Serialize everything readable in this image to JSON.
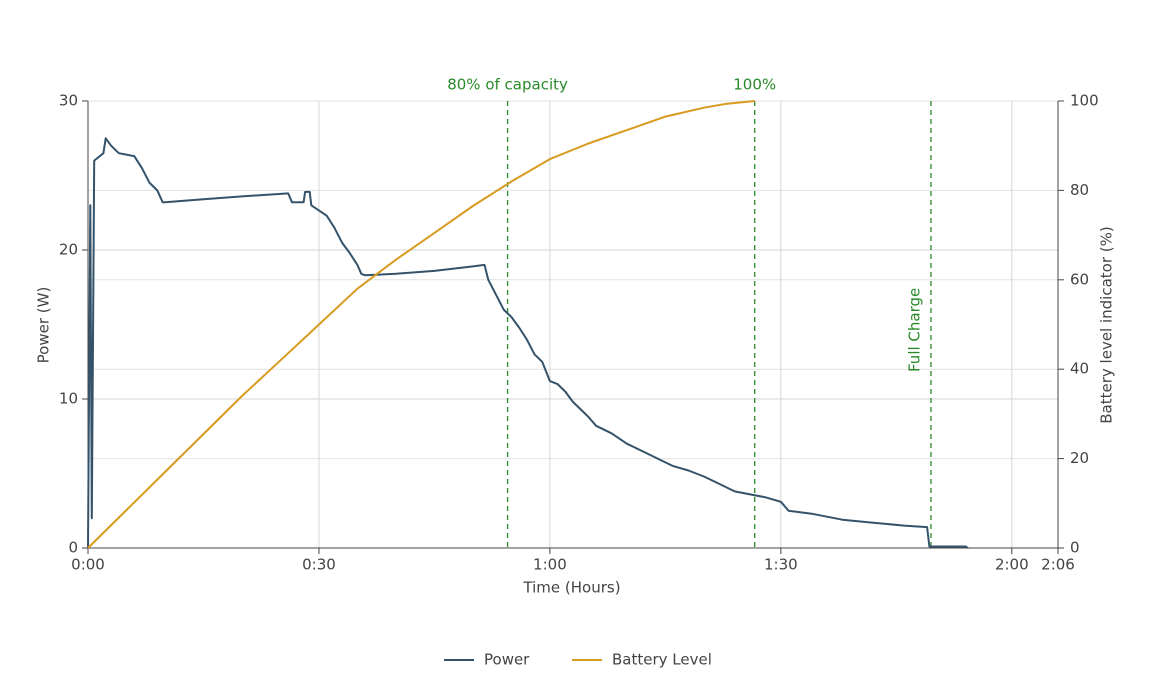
{
  "chart_data": {
    "type": "line",
    "x_label": "Time (Hours)",
    "y_label": "Power (W)",
    "y2_label": "Battery level indicator (%)",
    "xlim": [
      0,
      126
    ],
    "xticks": [
      {
        "value": 0,
        "label": "0:00"
      },
      {
        "value": 30,
        "label": "0:30"
      },
      {
        "value": 60,
        "label": "1:00"
      },
      {
        "value": 90,
        "label": "1:30"
      },
      {
        "value": 120,
        "label": "2:00"
      },
      {
        "value": 126,
        "label": "2:06"
      }
    ],
    "ylim": [
      0,
      30
    ],
    "yticks": [
      0,
      10,
      20,
      30
    ],
    "y2lim": [
      0,
      100
    ],
    "y2ticks": [
      0,
      20,
      40,
      60,
      80,
      100
    ],
    "grid": true,
    "legend": "bottom",
    "series": [
      {
        "name": "Power",
        "color": "#34536b",
        "x": [
          0,
          0.3,
          0.5,
          0.8,
          2,
          2.3,
          3,
          4,
          6,
          7,
          8,
          9,
          9.7,
          10,
          15,
          20,
          26,
          26.5,
          28,
          28.2,
          28.8,
          29,
          31,
          32,
          33,
          34,
          35,
          35.5,
          36,
          40,
          45,
          50,
          51.5,
          52,
          53,
          54,
          55,
          56,
          57,
          58,
          59,
          60,
          61,
          62,
          63,
          64,
          65,
          66,
          68,
          70,
          72,
          74,
          76,
          78,
          80,
          82,
          84,
          86,
          88,
          90,
          91,
          94,
          96,
          98,
          102,
          106,
          109,
          109.3,
          114,
          114.3
        ],
        "values": [
          0,
          23,
          2,
          26,
          26.5,
          27.5,
          27,
          26.5,
          26.3,
          25.5,
          24.5,
          24,
          23.2,
          23.2,
          23.4,
          23.6,
          23.8,
          23.2,
          23.2,
          23.9,
          23.9,
          23,
          22.3,
          21.5,
          20.5,
          19.8,
          19,
          18.4,
          18.3,
          18.4,
          18.6,
          18.9,
          19,
          18,
          17,
          16,
          15.5,
          14.8,
          14,
          13,
          12.5,
          11.2,
          11,
          10.5,
          9.8,
          9.3,
          8.8,
          8.2,
          7.7,
          7,
          6.5,
          6,
          5.5,
          5.2,
          4.8,
          4.3,
          3.8,
          3.6,
          3.4,
          3.1,
          2.5,
          2.3,
          2.1,
          1.9,
          1.7,
          1.5,
          1.4,
          0.1,
          0.1,
          0
        ]
      },
      {
        "name": "Battery Level",
        "color": "#d89a1f",
        "axis": "y2",
        "x": [
          0,
          5,
          10,
          15,
          20,
          25,
          30,
          35,
          40,
          45,
          50,
          55,
          60,
          65,
          70,
          75,
          80,
          83,
          86.6
        ],
        "values": [
          0,
          8.5,
          17,
          25.5,
          34,
          42,
          50,
          58,
          64.5,
          70.5,
          76.5,
          82,
          87,
          90.5,
          93.5,
          96.5,
          98.5,
          99.4,
          100
        ]
      }
    ],
    "annotations": [
      {
        "x": 54.5,
        "label": "80% of capacity",
        "color": "#2a8a2a"
      },
      {
        "x": 86.6,
        "label": "100%",
        "color": "#2a8a2a"
      },
      {
        "x": 109.5,
        "label": "Full Charge",
        "color": "#2a8a2a",
        "rotated": true
      }
    ]
  }
}
